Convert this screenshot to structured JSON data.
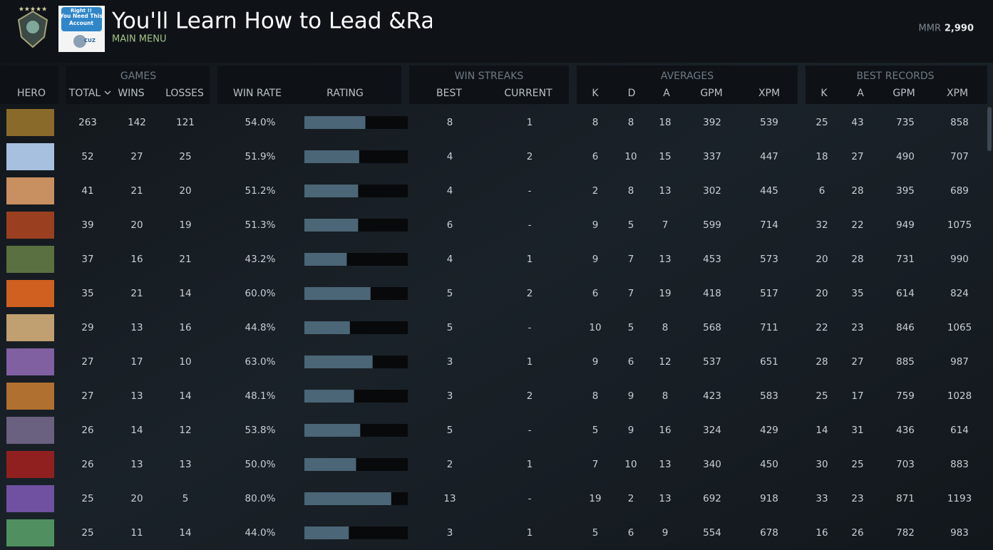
{
  "header": {
    "title": "You'll Learn How to Lead &Ra",
    "subtitle": "MAIN MENU",
    "mmr_label": "MMR",
    "mmr_value": "2,990",
    "logo_text": [
      "Right !!",
      "You Need This",
      "Account",
      "CUZ"
    ]
  },
  "table": {
    "groups": [
      "GAMES",
      "WIN STREAKS",
      "AVERAGES",
      "BEST RECORDS"
    ],
    "columns": [
      "HERO",
      "TOTAL",
      "WINS",
      "LOSSES",
      "WIN RATE",
      "RATING",
      "BEST",
      "CURRENT",
      "K",
      "D",
      "A",
      "GPM",
      "XPM",
      "K",
      "A",
      "GPM",
      "XPM"
    ],
    "rows": [
      [
        263,
        142,
        121,
        "54.0%",
        59,
        8,
        "1",
        8,
        8,
        18,
        392,
        539,
        25,
        43,
        735,
        858
      ],
      [
        52,
        27,
        25,
        "51.9%",
        53,
        4,
        "2",
        6,
        10,
        15,
        337,
        447,
        18,
        27,
        490,
        707
      ],
      [
        41,
        21,
        20,
        "51.2%",
        52,
        4,
        "-",
        2,
        8,
        13,
        302,
        445,
        6,
        28,
        395,
        689
      ],
      [
        39,
        20,
        19,
        "51.3%",
        52,
        6,
        "-",
        9,
        5,
        7,
        599,
        714,
        32,
        22,
        949,
        1075
      ],
      [
        37,
        16,
        21,
        "43.2%",
        41,
        4,
        "1",
        9,
        7,
        13,
        453,
        573,
        20,
        28,
        731,
        990
      ],
      [
        35,
        21,
        14,
        "60.0%",
        64,
        5,
        "2",
        6,
        7,
        19,
        418,
        517,
        20,
        35,
        614,
        824
      ],
      [
        29,
        13,
        16,
        "44.8%",
        44,
        5,
        "-",
        10,
        5,
        8,
        568,
        711,
        22,
        23,
        846,
        1065
      ],
      [
        27,
        17,
        10,
        "63.0%",
        66,
        3,
        "1",
        9,
        6,
        12,
        537,
        651,
        28,
        27,
        885,
        987
      ],
      [
        27,
        13,
        14,
        "48.1%",
        48,
        3,
        "2",
        8,
        9,
        8,
        423,
        583,
        25,
        17,
        759,
        1028
      ],
      [
        26,
        14,
        12,
        "53.8%",
        54,
        5,
        "-",
        5,
        9,
        16,
        324,
        429,
        14,
        31,
        436,
        614
      ],
      [
        26,
        13,
        13,
        "50.0%",
        50,
        2,
        "1",
        7,
        10,
        13,
        340,
        450,
        30,
        25,
        703,
        883
      ],
      [
        25,
        20,
        5,
        "80.0%",
        84,
        13,
        "-",
        19,
        2,
        13,
        692,
        918,
        33,
        23,
        871,
        1193
      ],
      [
        25,
        11,
        14,
        "44.0%",
        43,
        3,
        "1",
        5,
        6,
        9,
        554,
        678,
        16,
        26,
        782,
        983
      ]
    ]
  }
}
